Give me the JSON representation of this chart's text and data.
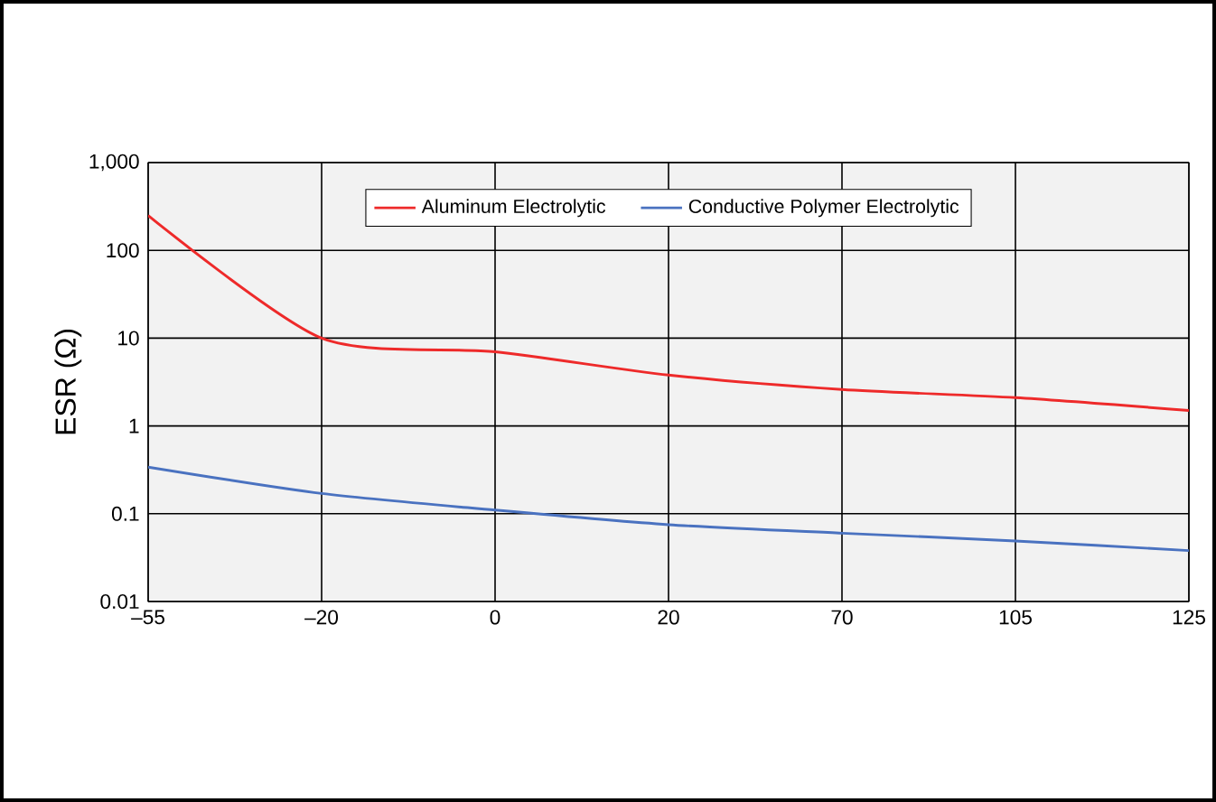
{
  "chart_data": {
    "type": "line",
    "ylabel": "ESR (Ω)",
    "categories": [
      "–55",
      "–20",
      "0",
      "20",
      "70",
      "105",
      "125"
    ],
    "series": [
      {
        "name": "Aluminum Electrolytic",
        "color": "#ee2a2a",
        "values": [
          250,
          10,
          7,
          3.8,
          2.6,
          2.1,
          1.5
        ]
      },
      {
        "name": "Conductive Polymer Electrolytic",
        "color": "#4a72c0",
        "values": [
          0.34,
          0.17,
          0.11,
          0.075,
          0.06,
          0.049,
          0.038
        ]
      }
    ],
    "log": "y",
    "ylim": [
      0.01,
      1000
    ],
    "yticks": [
      0.01,
      0.1,
      1,
      10,
      100,
      {
        "value": 1000,
        "label": "1,000"
      }
    ],
    "grid": true,
    "legend": "top"
  }
}
